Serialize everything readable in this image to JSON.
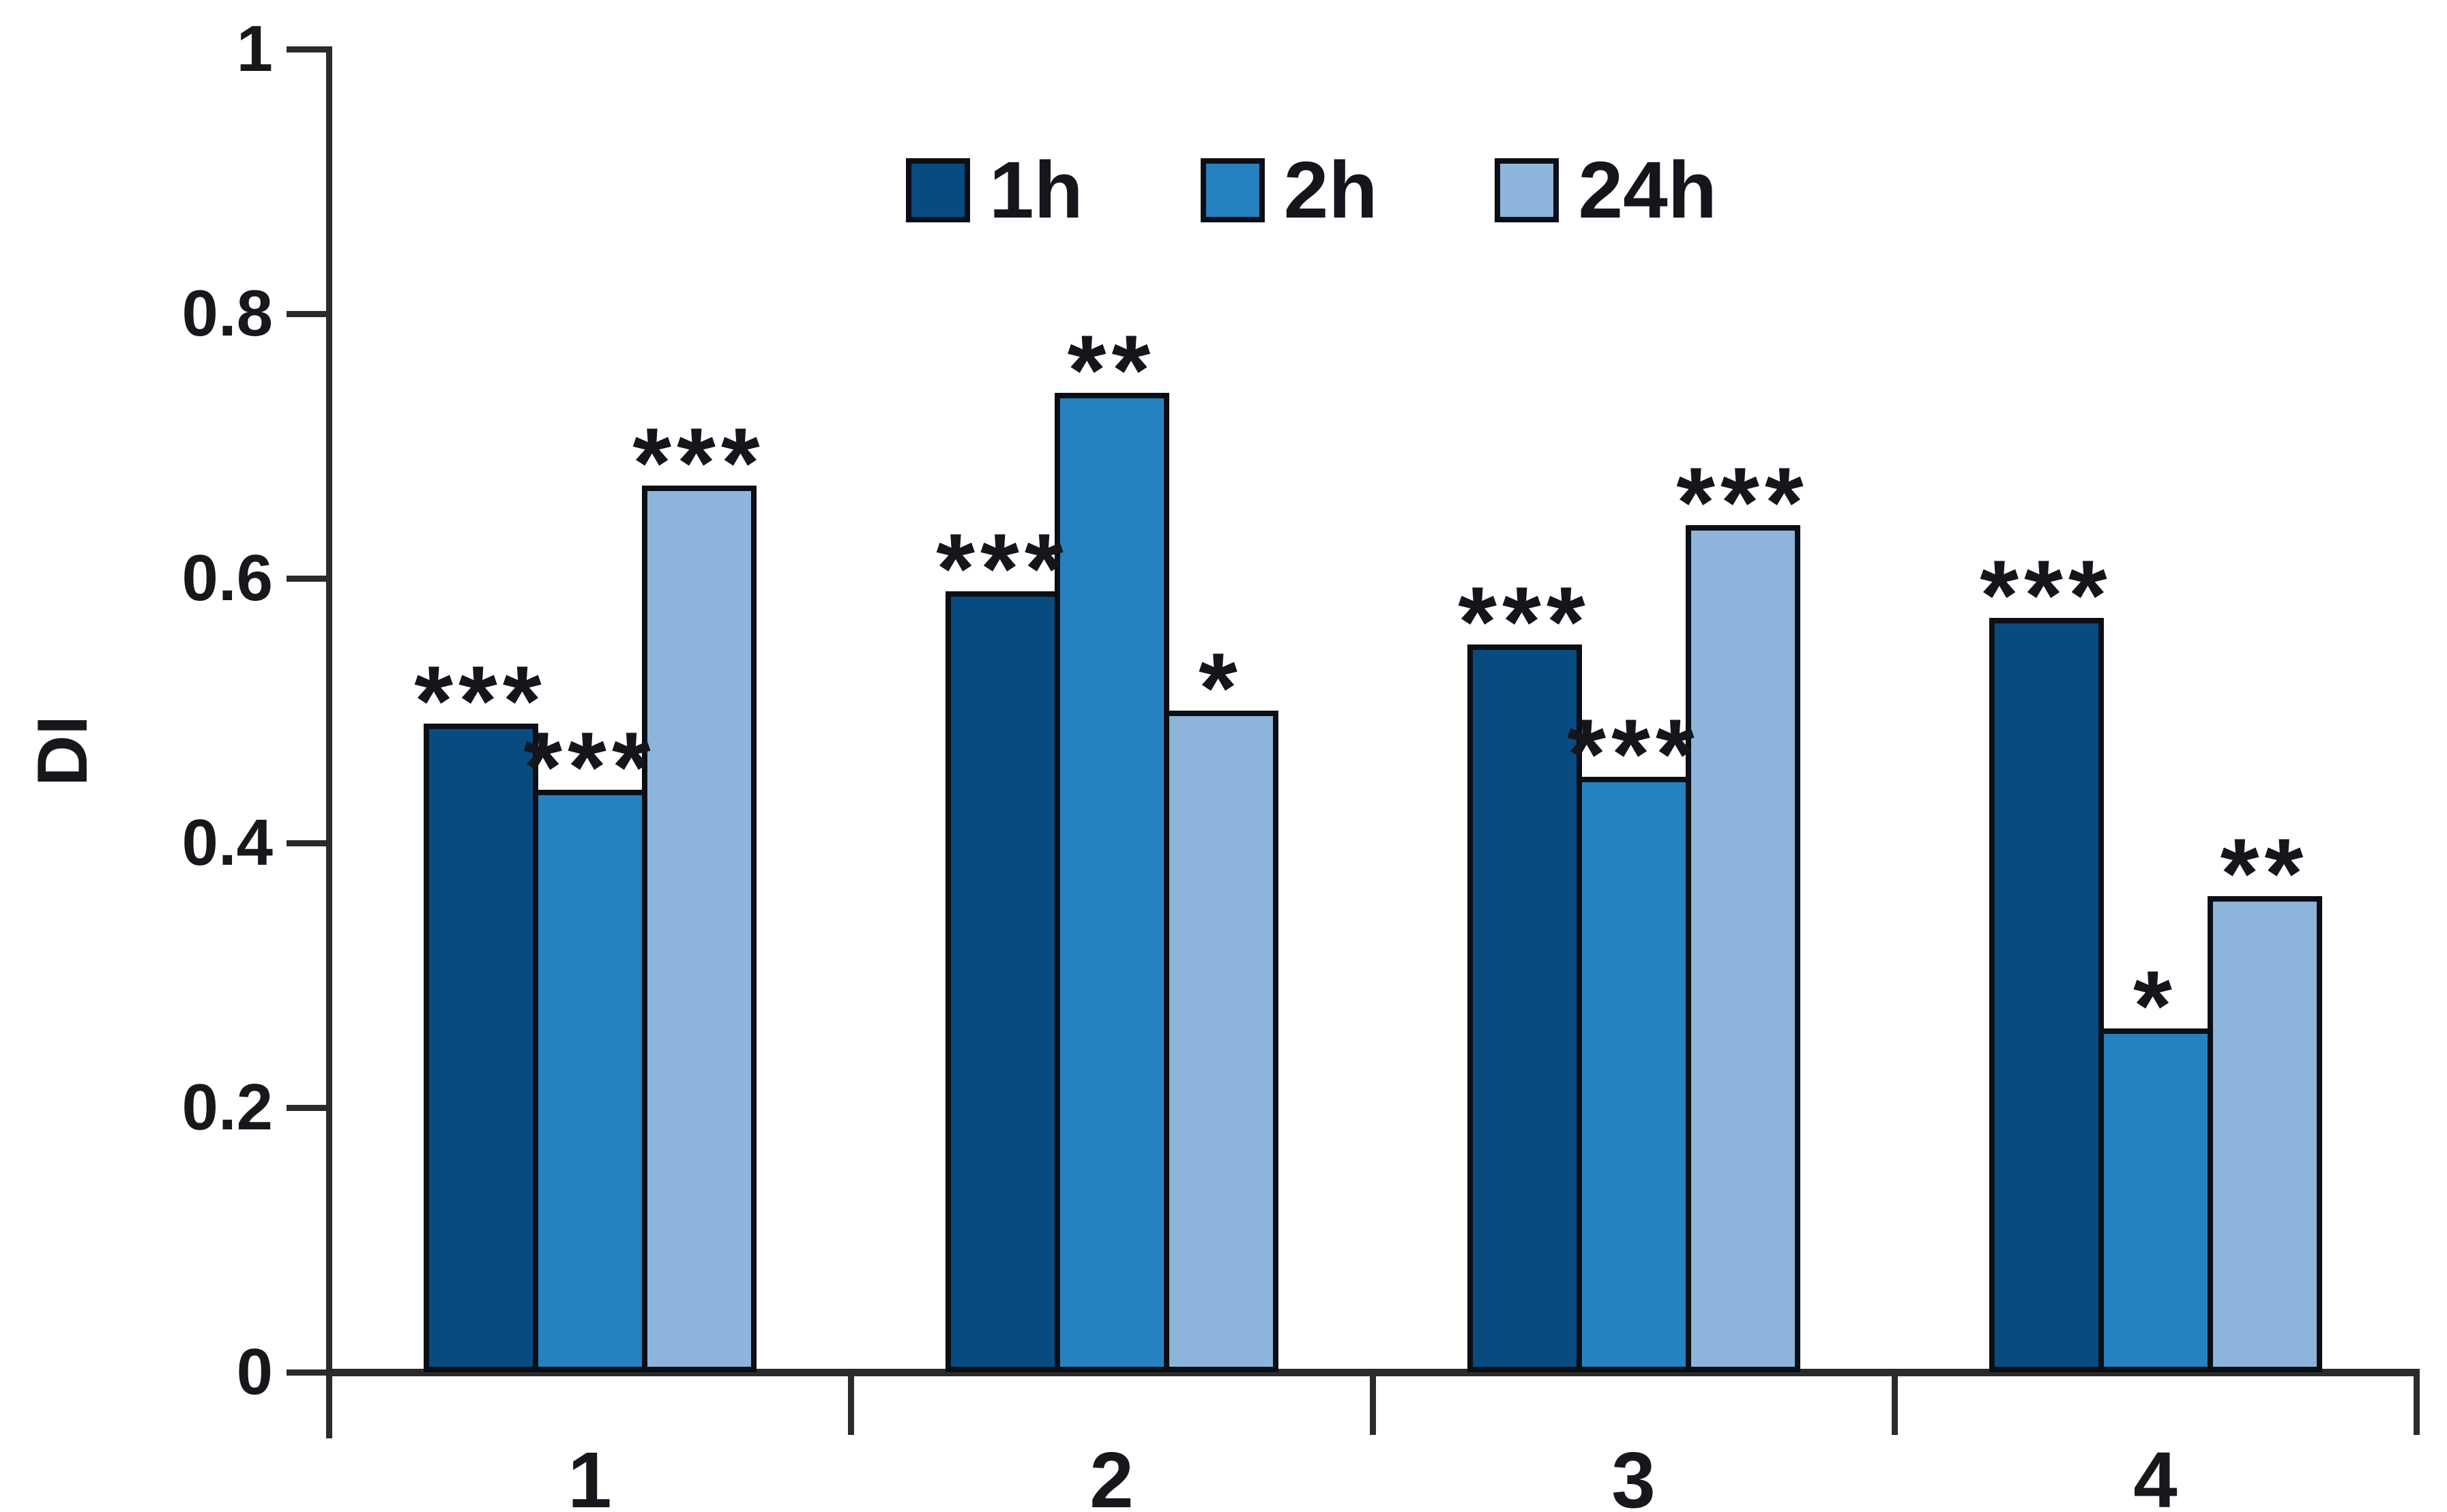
{
  "chart_data": {
    "type": "bar",
    "title": "",
    "xlabel": "",
    "ylabel": "DI",
    "categories": [
      "1",
      "2",
      "3",
      "4"
    ],
    "series": [
      {
        "name": "1h",
        "color": "#084b80",
        "values": [
          0.49,
          0.59,
          0.55,
          0.57
        ],
        "significance": [
          "***",
          "***",
          "***",
          "***"
        ]
      },
      {
        "name": "2h",
        "color": "#2681c0",
        "values": [
          0.44,
          0.74,
          0.45,
          0.26
        ],
        "significance": [
          "***",
          "**",
          "***",
          "*"
        ]
      },
      {
        "name": "24h",
        "color": "#8db5dc",
        "values": [
          0.67,
          0.5,
          0.64,
          0.36
        ],
        "significance": [
          "***",
          "*",
          "***",
          "**"
        ]
      }
    ],
    "ylim": [
      0,
      1
    ],
    "yticks": [
      "0",
      "0.2",
      "0.4",
      "0.6",
      "0.8",
      "1"
    ],
    "grid": false,
    "legend_position": "top-center",
    "colors": {
      "bar_border": "#0a0f16",
      "axis": "#2b2b2b",
      "text": "#16181c",
      "background": "#ffffff"
    }
  }
}
